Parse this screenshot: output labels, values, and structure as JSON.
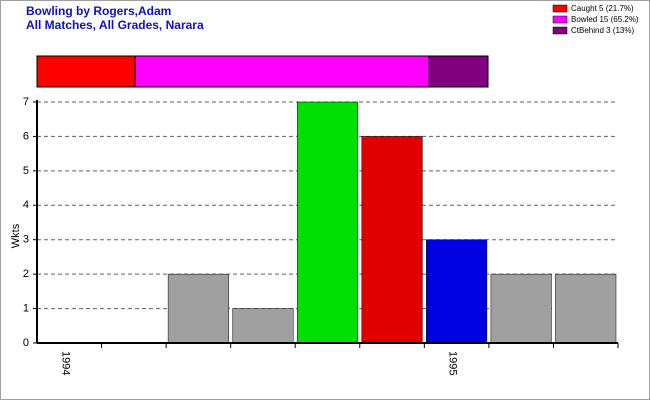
{
  "chart_data": [
    {
      "type": "stacked-hbar",
      "series": [
        {
          "name": "Caught 5 (21.7%)",
          "color": "#ff0000",
          "values": [
            5
          ]
        },
        {
          "name": "Bowled 15 (65.2%)",
          "color": "#ff00ff",
          "values": [
            15
          ]
        },
        {
          "name": "CtBehind 3 (13%)",
          "color": "#800080",
          "values": [
            3
          ]
        }
      ]
    },
    {
      "type": "bar",
      "title": "Bowling by Rogers,Adam",
      "subtitle": "All Matches, All Grades, Narara",
      "y_label": "Wkts",
      "categories": [
        "1994",
        null,
        null,
        null,
        null,
        null,
        "1995",
        null,
        null
      ],
      "values": [
        0,
        0,
        2,
        1,
        7,
        6,
        3,
        2,
        2
      ],
      "colors": [
        "#008000",
        "#008000",
        "#a0a0a0",
        "#a0a0a0",
        "#00e000",
        "#e00000",
        "#0000e0",
        "#a0a0a0",
        "#a0a0a0"
      ],
      "ylim": [
        0,
        7
      ],
      "yticks": [
        0,
        1,
        2,
        3,
        4,
        5,
        6,
        7
      ],
      "grid": true
    }
  ]
}
